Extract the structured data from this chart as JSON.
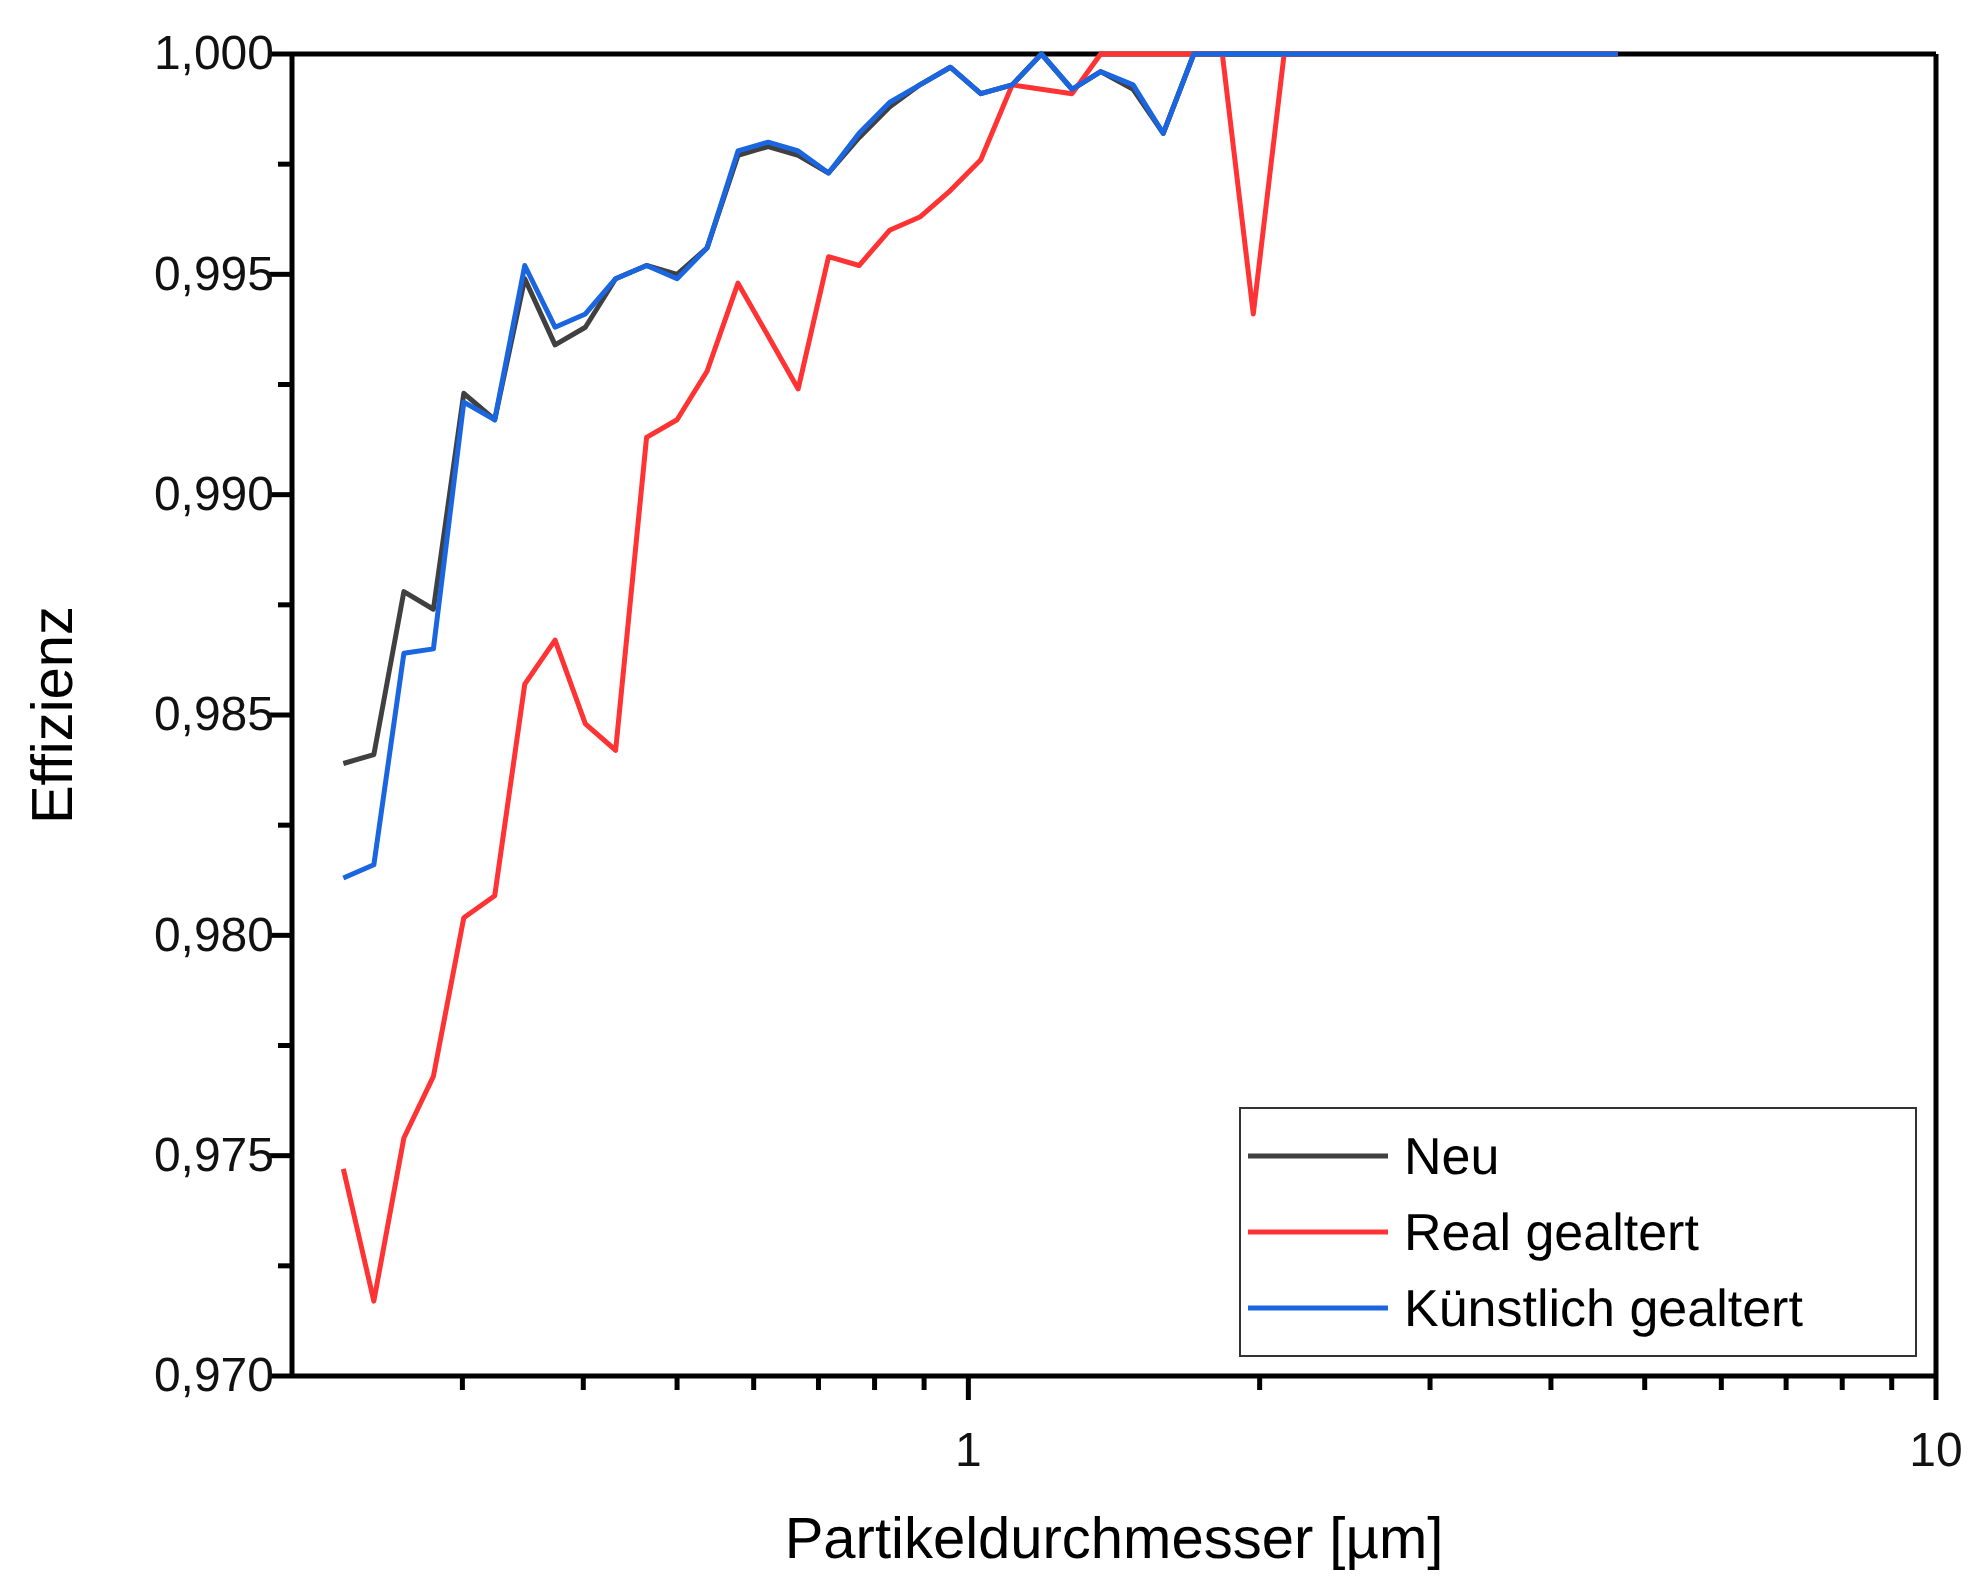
{
  "chart_data": {
    "type": "line",
    "xlabel": "Partikeldurchmesser [µm]",
    "ylabel": "Effizienz",
    "log": "x",
    "xlim": [
      0.2,
      10
    ],
    "ylim": [
      0.97,
      1.0
    ],
    "xticks": [
      {
        "value": 0.3,
        "label": null
      },
      {
        "value": 0.4,
        "label": null
      },
      {
        "value": 0.5,
        "label": null
      },
      {
        "value": 0.6,
        "label": null
      },
      {
        "value": 0.7,
        "label": null
      },
      {
        "value": 0.8,
        "label": null
      },
      {
        "value": 0.9,
        "label": null
      },
      1,
      {
        "value": 2,
        "label": null
      },
      {
        "value": 3,
        "label": null
      },
      {
        "value": 4,
        "label": null
      },
      {
        "value": 5,
        "label": null
      },
      {
        "value": 6,
        "label": null
      },
      {
        "value": 7,
        "label": null
      },
      {
        "value": 8,
        "label": null
      },
      {
        "value": 9,
        "label": null
      },
      10
    ],
    "yticks": [
      {
        "value": 0.97,
        "label": "0,970"
      },
      {
        "value": 0.9725,
        "label": null
      },
      {
        "value": 0.975,
        "label": "0,975"
      },
      {
        "value": 0.9775,
        "label": null
      },
      {
        "value": 0.98,
        "label": "0,980"
      },
      {
        "value": 0.9825,
        "label": null
      },
      {
        "value": 0.985,
        "label": "0,985"
      },
      {
        "value": 0.9875,
        "label": null
      },
      {
        "value": 0.99,
        "label": "0,990"
      },
      {
        "value": 0.9925,
        "label": null
      },
      {
        "value": 0.995,
        "label": "0,995"
      },
      {
        "value": 0.9975,
        "label": null
      },
      {
        "value": 1.0,
        "label": "1,000"
      }
    ],
    "x": [
      0.226,
      0.243,
      0.261,
      0.28,
      0.301,
      0.324,
      0.348,
      0.374,
      0.402,
      0.432,
      0.465,
      0.5,
      0.537,
      0.578,
      0.621,
      0.667,
      0.717,
      0.771,
      0.829,
      0.891,
      0.958,
      1.03,
      1.11,
      1.19,
      1.28,
      1.37,
      1.48,
      1.59,
      1.71,
      1.83,
      1.97,
      2.12,
      4.69
    ],
    "grid": false,
    "legend": "bottom right",
    "marker": "none",
    "line_style": "solid",
    "series": [
      {
        "name": "Neu",
        "color": "#404040",
        "values": [
          0.9839,
          0.9841,
          0.9878,
          0.9874,
          0.9923,
          0.9917,
          0.9949,
          0.9934,
          0.9938,
          0.9949,
          0.9952,
          0.995,
          0.9956,
          0.9977,
          0.9979,
          0.9977,
          0.9973,
          0.9981,
          0.9988,
          0.9993,
          0.9997,
          0.9991,
          0.9993,
          1.0,
          0.9992,
          0.9996,
          0.9992,
          0.9982,
          1.0,
          1.0,
          1.0,
          1.0,
          1.0
        ]
      },
      {
        "name": "Real gealtert",
        "color": "#ff3333",
        "values": [
          0.9747,
          0.9717,
          0.9754,
          0.9768,
          0.9804,
          0.9809,
          0.9857,
          0.9867,
          0.9848,
          0.9842,
          0.9913,
          0.9917,
          0.9928,
          0.9948,
          0.9936,
          0.9924,
          0.9954,
          0.9952,
          0.996,
          0.9963,
          0.9969,
          0.9976,
          0.9993,
          0.9992,
          0.9991,
          1.0,
          1.0,
          1.0,
          1.0,
          1.0,
          0.9941,
          1.0,
          1.0
        ]
      },
      {
        "name": "Künstlich gealtert",
        "color": "#1a66e0",
        "values": [
          0.9813,
          0.9816,
          0.9864,
          0.9865,
          0.9921,
          0.9917,
          0.9952,
          0.9938,
          0.9941,
          0.9949,
          0.9952,
          0.9949,
          0.9956,
          0.9978,
          0.998,
          0.9978,
          0.9973,
          0.9982,
          0.9989,
          0.9993,
          0.9997,
          0.9991,
          0.9993,
          1.0,
          0.9992,
          0.9996,
          0.9993,
          0.9982,
          1.0,
          1.0,
          1.0,
          1.0,
          1.0
        ]
      }
    ]
  }
}
